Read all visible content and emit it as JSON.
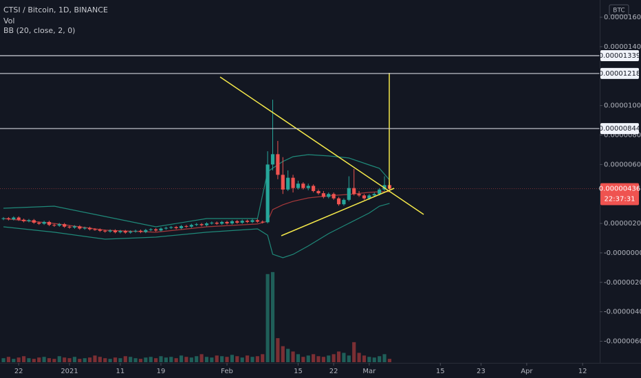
{
  "chart_data": {
    "type": "candlestick",
    "title": "CTSI / Bitcoin, 1D, BINANCE",
    "indicators": [
      "Vol",
      "BB (20, close, 2, 0)"
    ],
    "currency": "BTC",
    "x": [
      0,
      1,
      2,
      3,
      4,
      5,
      6,
      7,
      8,
      9,
      10,
      11,
      12,
      13,
      14,
      15,
      16,
      17,
      18,
      19,
      20,
      21,
      22,
      23,
      24,
      25,
      26,
      27,
      28,
      29,
      30,
      31,
      32,
      33,
      34,
      35,
      36,
      37,
      38,
      39,
      40,
      41,
      42,
      43,
      44,
      45,
      46,
      47,
      48,
      49,
      50,
      51,
      52,
      53,
      54,
      55,
      56,
      57,
      58,
      59,
      60,
      61,
      62,
      63,
      64,
      65,
      66,
      67,
      68,
      69,
      70,
      71,
      72,
      73,
      74,
      75,
      76
    ],
    "open": [
      2.3e-06,
      2.35e-06,
      2.28e-06,
      2.4e-06,
      2.25e-06,
      2.15e-06,
      2.22e-06,
      2.05e-06,
      1.98e-06,
      2.1e-06,
      1.9e-06,
      1.85e-06,
      1.95e-06,
      1.78e-06,
      1.72e-06,
      1.8e-06,
      1.65e-06,
      1.7e-06,
      1.6e-06,
      1.58e-06,
      1.5e-06,
      1.45e-06,
      1.52e-06,
      1.4e-06,
      1.48e-06,
      1.38e-06,
      1.45e-06,
      1.5e-06,
      1.42e-06,
      1.55e-06,
      1.6e-06,
      1.52e-06,
      1.65e-06,
      1.7e-06,
      1.75e-06,
      1.68e-06,
      1.82e-06,
      1.78e-06,
      1.9e-06,
      1.95e-06,
      1.88e-06,
      2e-06,
      2.05e-06,
      1.98e-06,
      2.1e-06,
      2e-06,
      2.15e-06,
      2.05e-06,
      2.18e-06,
      2.1e-06,
      2.22e-06,
      2.12e-06,
      2.08e-06,
      6e-06,
      6.7e-06,
      5.3e-06,
      4.3e-06,
      5.1e-06,
      4.4e-06,
      4.7e-06,
      4.4e-06,
      4.55e-06,
      4.2e-06,
      4.05e-06,
      3.8e-06,
      4e-06,
      3.7e-06,
      3.3e-06,
      3.6e-06,
      4.4e-06,
      4e-06,
      3.9e-06,
      3.7e-06,
      3.9e-06,
      4e-06,
      4.3e-06,
      4.6e-06
    ],
    "high": [
      2.43e-06,
      2.43e-06,
      2.48e-06,
      2.48e-06,
      2.33e-06,
      2.3e-06,
      2.3e-06,
      2.13e-06,
      2.18e-06,
      2.18e-06,
      1.98e-06,
      2.03e-06,
      2.03e-06,
      1.86e-06,
      1.88e-06,
      1.88e-06,
      1.78e-06,
      1.78e-06,
      1.68e-06,
      1.66e-06,
      1.58e-06,
      1.6e-06,
      1.6e-06,
      1.56e-06,
      1.56e-06,
      1.53e-06,
      1.58e-06,
      1.58e-06,
      1.63e-06,
      1.68e-06,
      1.68e-06,
      1.73e-06,
      1.78e-06,
      1.83e-06,
      1.83e-06,
      1.9e-06,
      1.9e-06,
      1.98e-06,
      2.03e-06,
      2.03e-06,
      2.08e-06,
      2.13e-06,
      2.13e-06,
      2.18e-06,
      2.18e-06,
      2.23e-06,
      2.23e-06,
      2.26e-06,
      2.26e-06,
      2.3e-06,
      2.3e-06,
      2.2e-06,
      6.9e-06,
      1.04e-05,
      7.6e-06,
      6.5e-06,
      5.6e-06,
      5.3e-06,
      4.9e-06,
      4.8e-06,
      4.7e-06,
      4.65e-06,
      4.3e-06,
      4.2e-06,
      4.1e-06,
      4.1e-06,
      3.8e-06,
      3.7e-06,
      5.2e-06,
      5.7e-06,
      4.2e-06,
      4e-06,
      4e-06,
      4.1e-06,
      4.4e-06,
      5.2e-06,
      4.8e-06
    ],
    "low": [
      2.22e-06,
      2.2e-06,
      2.2e-06,
      2.17e-06,
      2.07e-06,
      2.07e-06,
      1.97e-06,
      1.9e-06,
      1.9e-06,
      1.82e-06,
      1.77e-06,
      1.77e-06,
      1.7e-06,
      1.64e-06,
      1.64e-06,
      1.57e-06,
      1.57e-06,
      1.52e-06,
      1.5e-06,
      1.42e-06,
      1.37e-06,
      1.37e-06,
      1.32e-06,
      1.32e-06,
      1.3e-06,
      1.3e-06,
      1.37e-06,
      1.34e-06,
      1.34e-06,
      1.47e-06,
      1.44e-06,
      1.44e-06,
      1.57e-06,
      1.62e-06,
      1.6e-06,
      1.6e-06,
      1.7e-06,
      1.7e-06,
      1.82e-06,
      1.8e-06,
      1.8e-06,
      1.92e-06,
      1.9e-06,
      1.9e-06,
      1.92e-06,
      1.92e-06,
      1.97e-06,
      1.97e-06,
      2.02e-06,
      2.02e-06,
      2.04e-06,
      2e-06,
      2e-06,
      5.6e-06,
      5e-06,
      4e-06,
      4.2e-06,
      4.1e-06,
      4.3e-06,
      4.3e-06,
      4.25e-06,
      4.1e-06,
      3.95e-06,
      3.7e-06,
      3.7e-06,
      3.6e-06,
      3.2e-06,
      3.2e-06,
      3.5e-06,
      3.9e-06,
      3.8e-06,
      3.6e-06,
      3.6e-06,
      3.8e-06,
      3.9e-06,
      4.2e-06,
      4.25e-06
    ],
    "close": [
      2.35e-06,
      2.28e-06,
      2.4e-06,
      2.25e-06,
      2.15e-06,
      2.22e-06,
      2.05e-06,
      1.98e-06,
      2.1e-06,
      1.9e-06,
      1.85e-06,
      1.95e-06,
      1.78e-06,
      1.72e-06,
      1.8e-06,
      1.65e-06,
      1.7e-06,
      1.6e-06,
      1.58e-06,
      1.5e-06,
      1.45e-06,
      1.52e-06,
      1.4e-06,
      1.48e-06,
      1.38e-06,
      1.45e-06,
      1.5e-06,
      1.42e-06,
      1.55e-06,
      1.6e-06,
      1.52e-06,
      1.65e-06,
      1.7e-06,
      1.75e-06,
      1.68e-06,
      1.82e-06,
      1.78e-06,
      1.9e-06,
      1.95e-06,
      1.88e-06,
      2e-06,
      2.05e-06,
      1.98e-06,
      2.1e-06,
      2e-06,
      2.15e-06,
      2.05e-06,
      2.18e-06,
      2.1e-06,
      2.22e-06,
      2.12e-06,
      2.08e-06,
      6e-06,
      6.7e-06,
      5.3e-06,
      4.3e-06,
      5.1e-06,
      4.4e-06,
      4.7e-06,
      4.4e-06,
      4.55e-06,
      4.2e-06,
      4.05e-06,
      3.8e-06,
      4e-06,
      3.7e-06,
      3.3e-06,
      3.6e-06,
      4.4e-06,
      4e-06,
      3.9e-06,
      3.7e-06,
      3.9e-06,
      4e-06,
      4.3e-06,
      4.6e-06,
      4.36e-06
    ],
    "volume": [
      6,
      8,
      5,
      7,
      9,
      6,
      5,
      7,
      8,
      6,
      5,
      9,
      7,
      6,
      8,
      5,
      6,
      7,
      10,
      8,
      6,
      5,
      7,
      6,
      9,
      8,
      6,
      5,
      7,
      8,
      6,
      9,
      7,
      8,
      6,
      10,
      8,
      7,
      9,
      12,
      8,
      7,
      10,
      9,
      8,
      11,
      9,
      7,
      10,
      8,
      9,
      12,
      132,
      135,
      36,
      24,
      20,
      16,
      12,
      8,
      10,
      12,
      9,
      8,
      10,
      12,
      16,
      14,
      10,
      30,
      14,
      10,
      8,
      7,
      9,
      12,
      5
    ],
    "volume_lim": [
      0,
      140
    ],
    "up_color": "#26a69a",
    "down_color": "#ef5350",
    "volume_up_color": "#1f5f59",
    "volume_down_color": "#7b2f34",
    "bollinger": {
      "x": [
        0,
        10,
        20,
        30,
        40,
        50,
        52,
        53,
        55,
        57,
        60,
        64,
        68,
        72,
        74,
        76
      ],
      "upper": [
        3.03e-06,
        3.17e-06,
        2.47e-06,
        1.77e-06,
        2.33e-06,
        2.33e-06,
        5.51e-06,
        5.75e-06,
        6.21e-06,
        6.53e-06,
        6.67e-06,
        6.58e-06,
        6.44e-06,
        5.97e-06,
        5.74e-06,
        4.95e-06
      ],
      "basis": [
        2.33e-06,
        2e-06,
        1.54e-06,
        1.4e-06,
        1.77e-06,
        1.96e-06,
        2.15e-06,
        2.94e-06,
        3.27e-06,
        3.5e-06,
        3.73e-06,
        3.88e-06,
        3.97e-06,
        4.11e-06,
        4.15e-06,
        4.15e-06
      ],
      "lower": [
        1.77e-06,
        1.4e-06,
        9.3e-07,
        1.07e-06,
        1.4e-06,
        1.63e-06,
        1.2e-06,
        -9e-08,
        -3.3e-07,
        -1e-07,
        4.7e-07,
        1.31e-06,
        2.01e-06,
        2.71e-06,
        3.17e-06,
        3.36e-06
      ],
      "band_color": "#1f8a7a",
      "basis_color": "#a8393b"
    },
    "levels": [
      {
        "value": 1.339e-05,
        "label": "0.00001339"
      },
      {
        "value": 1.218e-05,
        "label": "0.00001218"
      },
      {
        "value": 8.44e-06,
        "label": "0.00000844"
      }
    ],
    "current_price": {
      "value": 4.36e-06,
      "label": "0.00000436"
    },
    "countdown": "22:37:31",
    "xlim": [
      -0.68,
      117.37
    ],
    "xticks": [
      {
        "value": 3,
        "label": "22"
      },
      {
        "value": 13,
        "label": "2021"
      },
      {
        "value": 23,
        "label": "11"
      },
      {
        "value": 31,
        "label": "19"
      },
      {
        "value": 44,
        "label": "Feb"
      },
      {
        "value": 58,
        "label": "15"
      },
      {
        "value": 65,
        "label": "22"
      },
      {
        "value": 72,
        "label": "Mar"
      },
      {
        "value": 86,
        "label": "15"
      },
      {
        "value": 94,
        "label": "23"
      },
      {
        "value": 103,
        "label": "Apr"
      },
      {
        "value": 114,
        "label": "12"
      }
    ],
    "ylim": [
      -7.47e-06,
      1.717e-05
    ],
    "yticks": [
      {
        "value": 1.6e-05,
        "label": "0.00001600"
      },
      {
        "value": 1.4e-05,
        "label": "0.00001400"
      },
      {
        "value": 1e-05,
        "label": "0.00001000"
      },
      {
        "value": 8e-06,
        "label": "0.00000800"
      },
      {
        "value": 6e-06,
        "label": "0.00000600"
      },
      {
        "value": 2e-06,
        "label": "0.00000200"
      },
      {
        "value": 0,
        "label": "-0.00000000"
      },
      {
        "value": -2e-06,
        "label": "-0.00000200"
      },
      {
        "value": -4e-06,
        "label": "-0.00000400"
      },
      {
        "value": -6e-06,
        "label": "-0.00000600"
      }
    ]
  }
}
